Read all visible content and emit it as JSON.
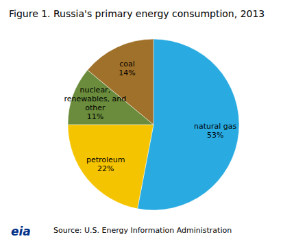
{
  "chart_data": {
    "type": "pie",
    "title": "Figure 1. Russia's primary energy consumption, 2013",
    "categories": [
      "natural gas\n53%",
      "petroleum\n22%",
      "nuclear,\nrenewables, and\nother\n11%",
      "coal\n14%"
    ],
    "values": [
      53,
      22,
      11,
      14
    ],
    "colors": [
      "#29ABE2",
      "#F5C400",
      "#6A8C3C",
      "#A0712A"
    ],
    "annotations": [
      "Source: U.S. Energy Information Administration",
      "eia"
    ]
  }
}
